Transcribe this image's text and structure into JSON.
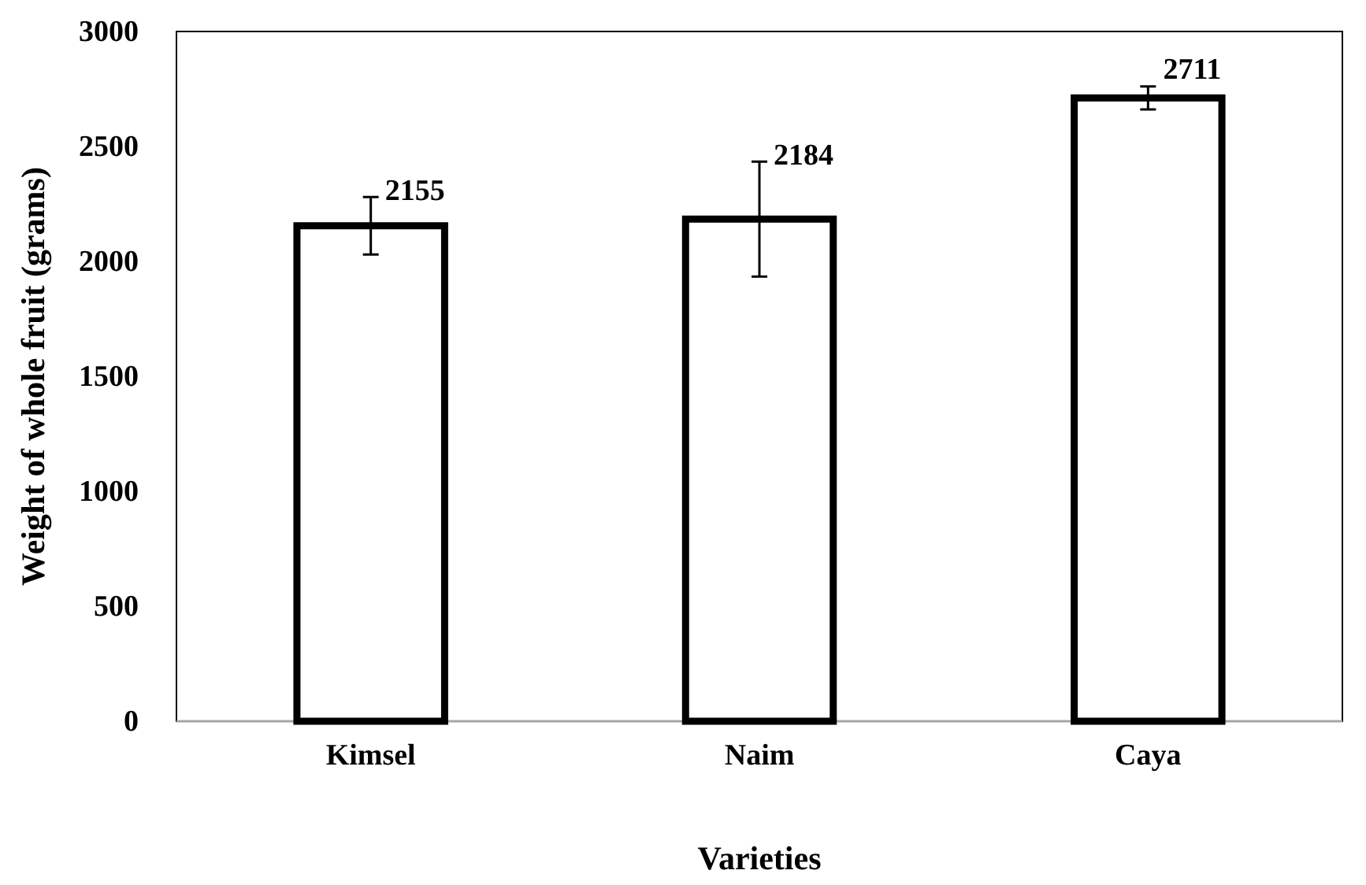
{
  "chart_data": {
    "type": "bar",
    "xlabel": "Varieties",
    "ylabel": "Weight of whole fruit (grams)",
    "categories": [
      "Kimsel",
      "Naim",
      "Caya"
    ],
    "values": [
      2155,
      2184,
      2711
    ],
    "errors": [
      125,
      250,
      50
    ],
    "color": "#ffffff",
    "ylim": [
      0,
      3000
    ],
    "yticks": [
      0,
      500,
      1000,
      1500,
      2000,
      2500,
      3000
    ],
    "data_labels": true,
    "grid": false
  }
}
